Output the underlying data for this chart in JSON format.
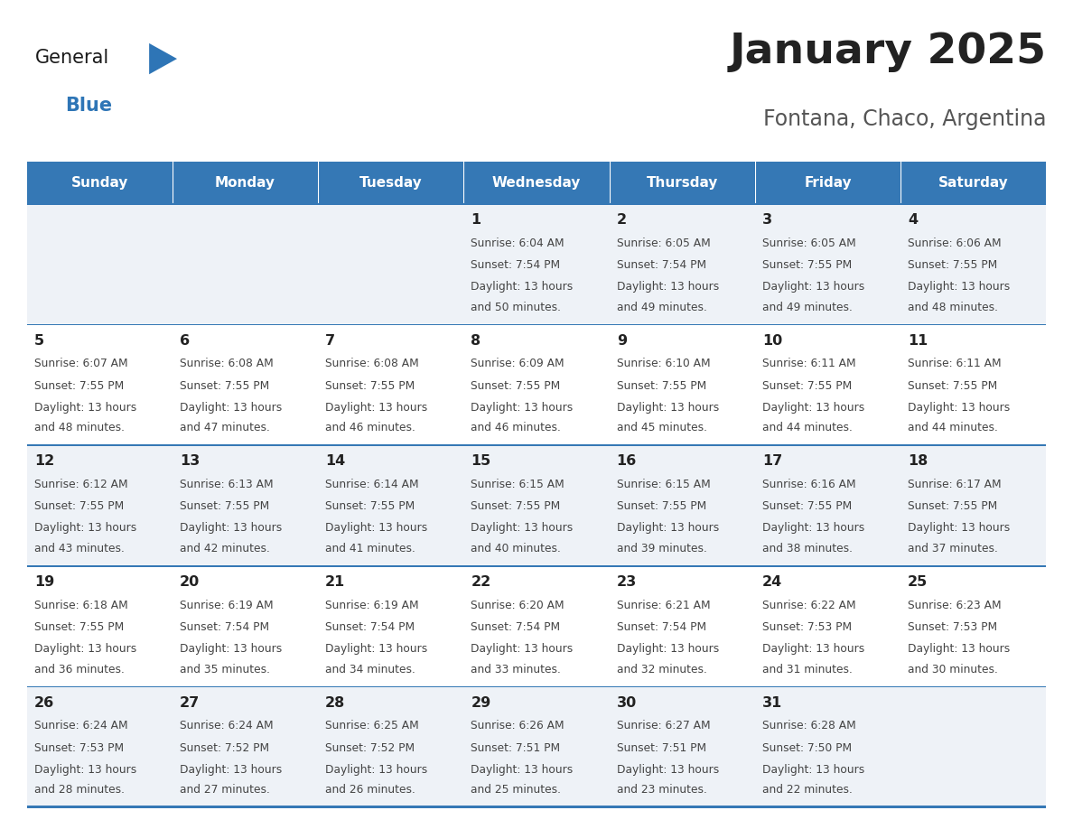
{
  "title": "January 2025",
  "subtitle": "Fontana, Chaco, Argentina",
  "days_of_week": [
    "Sunday",
    "Monday",
    "Tuesday",
    "Wednesday",
    "Thursday",
    "Friday",
    "Saturday"
  ],
  "calendar": [
    [
      {
        "day": "",
        "sunrise": "",
        "sunset": "",
        "daylight_hours": "",
        "daylight_mins": ""
      },
      {
        "day": "",
        "sunrise": "",
        "sunset": "",
        "daylight_hours": "",
        "daylight_mins": ""
      },
      {
        "day": "",
        "sunrise": "",
        "sunset": "",
        "daylight_hours": "",
        "daylight_mins": ""
      },
      {
        "day": "1",
        "sunrise": "6:04 AM",
        "sunset": "7:54 PM",
        "daylight_hours": "13 hours",
        "daylight_mins": "and 50 minutes."
      },
      {
        "day": "2",
        "sunrise": "6:05 AM",
        "sunset": "7:54 PM",
        "daylight_hours": "13 hours",
        "daylight_mins": "and 49 minutes."
      },
      {
        "day": "3",
        "sunrise": "6:05 AM",
        "sunset": "7:55 PM",
        "daylight_hours": "13 hours",
        "daylight_mins": "and 49 minutes."
      },
      {
        "day": "4",
        "sunrise": "6:06 AM",
        "sunset": "7:55 PM",
        "daylight_hours": "13 hours",
        "daylight_mins": "and 48 minutes."
      }
    ],
    [
      {
        "day": "5",
        "sunrise": "6:07 AM",
        "sunset": "7:55 PM",
        "daylight_hours": "13 hours",
        "daylight_mins": "and 48 minutes."
      },
      {
        "day": "6",
        "sunrise": "6:08 AM",
        "sunset": "7:55 PM",
        "daylight_hours": "13 hours",
        "daylight_mins": "and 47 minutes."
      },
      {
        "day": "7",
        "sunrise": "6:08 AM",
        "sunset": "7:55 PM",
        "daylight_hours": "13 hours",
        "daylight_mins": "and 46 minutes."
      },
      {
        "day": "8",
        "sunrise": "6:09 AM",
        "sunset": "7:55 PM",
        "daylight_hours": "13 hours",
        "daylight_mins": "and 46 minutes."
      },
      {
        "day": "9",
        "sunrise": "6:10 AM",
        "sunset": "7:55 PM",
        "daylight_hours": "13 hours",
        "daylight_mins": "and 45 minutes."
      },
      {
        "day": "10",
        "sunrise": "6:11 AM",
        "sunset": "7:55 PM",
        "daylight_hours": "13 hours",
        "daylight_mins": "and 44 minutes."
      },
      {
        "day": "11",
        "sunrise": "6:11 AM",
        "sunset": "7:55 PM",
        "daylight_hours": "13 hours",
        "daylight_mins": "and 44 minutes."
      }
    ],
    [
      {
        "day": "12",
        "sunrise": "6:12 AM",
        "sunset": "7:55 PM",
        "daylight_hours": "13 hours",
        "daylight_mins": "and 43 minutes."
      },
      {
        "day": "13",
        "sunrise": "6:13 AM",
        "sunset": "7:55 PM",
        "daylight_hours": "13 hours",
        "daylight_mins": "and 42 minutes."
      },
      {
        "day": "14",
        "sunrise": "6:14 AM",
        "sunset": "7:55 PM",
        "daylight_hours": "13 hours",
        "daylight_mins": "and 41 minutes."
      },
      {
        "day": "15",
        "sunrise": "6:15 AM",
        "sunset": "7:55 PM",
        "daylight_hours": "13 hours",
        "daylight_mins": "and 40 minutes."
      },
      {
        "day": "16",
        "sunrise": "6:15 AM",
        "sunset": "7:55 PM",
        "daylight_hours": "13 hours",
        "daylight_mins": "and 39 minutes."
      },
      {
        "day": "17",
        "sunrise": "6:16 AM",
        "sunset": "7:55 PM",
        "daylight_hours": "13 hours",
        "daylight_mins": "and 38 minutes."
      },
      {
        "day": "18",
        "sunrise": "6:17 AM",
        "sunset": "7:55 PM",
        "daylight_hours": "13 hours",
        "daylight_mins": "and 37 minutes."
      }
    ],
    [
      {
        "day": "19",
        "sunrise": "6:18 AM",
        "sunset": "7:55 PM",
        "daylight_hours": "13 hours",
        "daylight_mins": "and 36 minutes."
      },
      {
        "day": "20",
        "sunrise": "6:19 AM",
        "sunset": "7:54 PM",
        "daylight_hours": "13 hours",
        "daylight_mins": "and 35 minutes."
      },
      {
        "day": "21",
        "sunrise": "6:19 AM",
        "sunset": "7:54 PM",
        "daylight_hours": "13 hours",
        "daylight_mins": "and 34 minutes."
      },
      {
        "day": "22",
        "sunrise": "6:20 AM",
        "sunset": "7:54 PM",
        "daylight_hours": "13 hours",
        "daylight_mins": "and 33 minutes."
      },
      {
        "day": "23",
        "sunrise": "6:21 AM",
        "sunset": "7:54 PM",
        "daylight_hours": "13 hours",
        "daylight_mins": "and 32 minutes."
      },
      {
        "day": "24",
        "sunrise": "6:22 AM",
        "sunset": "7:53 PM",
        "daylight_hours": "13 hours",
        "daylight_mins": "and 31 minutes."
      },
      {
        "day": "25",
        "sunrise": "6:23 AM",
        "sunset": "7:53 PM",
        "daylight_hours": "13 hours",
        "daylight_mins": "and 30 minutes."
      }
    ],
    [
      {
        "day": "26",
        "sunrise": "6:24 AM",
        "sunset": "7:53 PM",
        "daylight_hours": "13 hours",
        "daylight_mins": "and 28 minutes."
      },
      {
        "day": "27",
        "sunrise": "6:24 AM",
        "sunset": "7:52 PM",
        "daylight_hours": "13 hours",
        "daylight_mins": "and 27 minutes."
      },
      {
        "day": "28",
        "sunrise": "6:25 AM",
        "sunset": "7:52 PM",
        "daylight_hours": "13 hours",
        "daylight_mins": "and 26 minutes."
      },
      {
        "day": "29",
        "sunrise": "6:26 AM",
        "sunset": "7:51 PM",
        "daylight_hours": "13 hours",
        "daylight_mins": "and 25 minutes."
      },
      {
        "day": "30",
        "sunrise": "6:27 AM",
        "sunset": "7:51 PM",
        "daylight_hours": "13 hours",
        "daylight_mins": "and 23 minutes."
      },
      {
        "day": "31",
        "sunrise": "6:28 AM",
        "sunset": "7:50 PM",
        "daylight_hours": "13 hours",
        "daylight_mins": "and 22 minutes."
      },
      {
        "day": "",
        "sunrise": "",
        "sunset": "",
        "daylight_hours": "",
        "daylight_mins": ""
      }
    ]
  ],
  "header_color": "#3578b5",
  "row_sep_color": "#3578b5",
  "cell_bg_light": "#eef2f7",
  "cell_bg_white": "#ffffff",
  "text_color": "#444444",
  "day_num_color": "#222222",
  "title_color": "#222222",
  "subtitle_color": "#555555",
  "logo_general_color": "#1a1a1a",
  "logo_blue_color": "#2e75b6",
  "logo_triangle_color": "#2e75b6"
}
